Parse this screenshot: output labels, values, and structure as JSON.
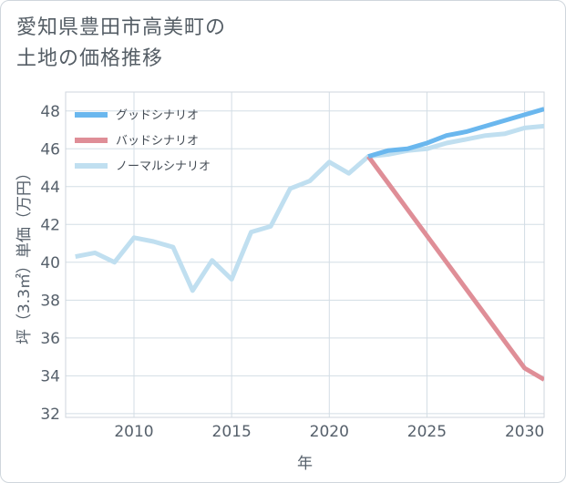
{
  "title_lines": [
    "愛知県豊田市高美町の",
    "土地の価格推移"
  ],
  "chart_data": {
    "type": "line",
    "title": "愛知県豊田市高美町の土地の価格推移",
    "xlabel": "年",
    "ylabel": "坪（3.3㎡）単価（万円）",
    "xlim": [
      2006.5,
      2031
    ],
    "ylim": [
      31.8,
      49
    ],
    "xticks": [
      2010,
      2015,
      2020,
      2025,
      2030
    ],
    "yticks": [
      32,
      34,
      36,
      38,
      40,
      42,
      44,
      46,
      48
    ],
    "grid": true,
    "legend_position": "top-left",
    "series": [
      {
        "name": "グッドシナリオ",
        "color": "#6ab7ee",
        "x": [
          2022,
          2023,
          2024,
          2025,
          2026,
          2027,
          2028,
          2029,
          2030,
          2031
        ],
        "values": [
          45.6,
          45.9,
          46.0,
          46.3,
          46.7,
          46.9,
          47.2,
          47.5,
          47.8,
          48.1
        ]
      },
      {
        "name": "バッドシナリオ",
        "color": "#df8e97",
        "x": [
          2022,
          2023,
          2024,
          2025,
          2026,
          2027,
          2028,
          2029,
          2030,
          2031
        ],
        "values": [
          45.6,
          44.2,
          42.8,
          41.4,
          40.0,
          38.6,
          37.2,
          35.8,
          34.4,
          33.8
        ]
      },
      {
        "name": "ノーマルシナリオ",
        "color": "#c0dff0",
        "x": [
          2007,
          2008,
          2009,
          2010,
          2011,
          2012,
          2013,
          2014,
          2015,
          2016,
          2017,
          2018,
          2019,
          2020,
          2021,
          2022,
          2023,
          2024,
          2025,
          2026,
          2027,
          2028,
          2029,
          2030,
          2031
        ],
        "values": [
          40.3,
          40.5,
          40.0,
          41.3,
          41.1,
          40.8,
          38.5,
          40.1,
          39.1,
          41.6,
          41.9,
          43.9,
          44.3,
          45.3,
          44.7,
          45.6,
          45.7,
          45.9,
          46.0,
          46.3,
          46.5,
          46.7,
          46.8,
          47.1,
          47.2
        ]
      }
    ]
  }
}
